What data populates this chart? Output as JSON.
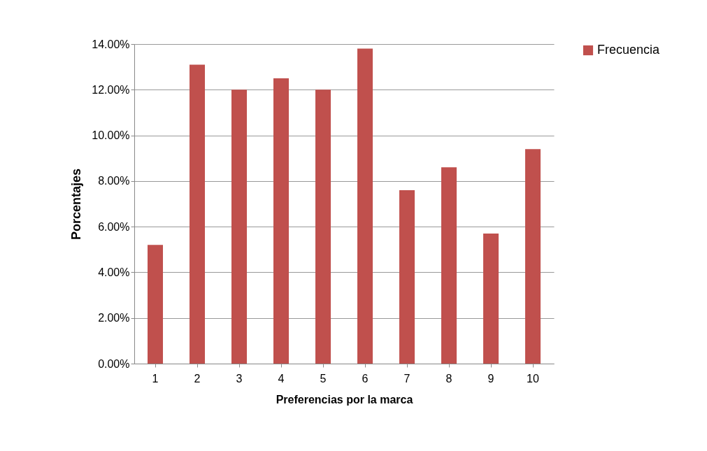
{
  "chart_data": {
    "type": "bar",
    "xlabel": "Preferencias por la marca",
    "ylabel": "Porcentajes",
    "categories": [
      "1",
      "2",
      "3",
      "4",
      "5",
      "6",
      "7",
      "8",
      "9",
      "10"
    ],
    "series": [
      {
        "name": "Frecuencia",
        "color": "#c0504d",
        "values": [
          5.2,
          13.1,
          12.0,
          12.5,
          12.0,
          13.8,
          7.6,
          8.6,
          5.7,
          9.4
        ]
      }
    ],
    "ylim": [
      0,
      14
    ],
    "yticks": [
      {
        "value": 0,
        "label": "0.00%"
      },
      {
        "value": 2,
        "label": "2.00%"
      },
      {
        "value": 4,
        "label": "4.00%"
      },
      {
        "value": 6,
        "label": "6.00%"
      },
      {
        "value": 8,
        "label": "8.00%"
      },
      {
        "value": 10,
        "label": "10.00%"
      },
      {
        "value": 12,
        "label": "12.00%"
      },
      {
        "value": 14,
        "label": "14.00%"
      }
    ],
    "grid": "y",
    "legend": "right"
  }
}
